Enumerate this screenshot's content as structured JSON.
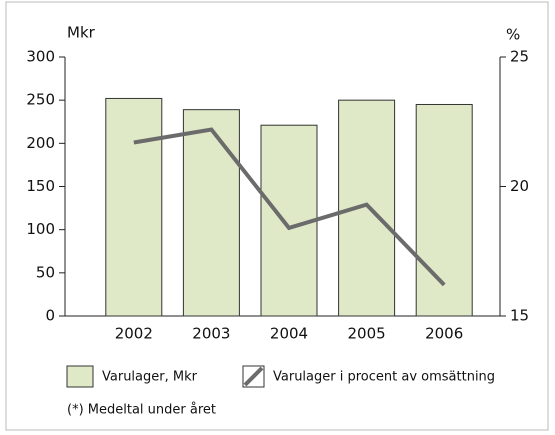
{
  "chart_data": {
    "type": "combo",
    "ylabel": "Mkr",
    "y2label": "%",
    "categories": [
      "2002",
      "2003",
      "2004",
      "2005",
      "2006"
    ],
    "series": [
      {
        "name": "Varulager, Mkr",
        "type": "bar",
        "color": "#dfe9c8",
        "values": [
          252,
          239,
          221,
          250,
          245
        ]
      },
      {
        "name": "Varulager i procent av omsättning",
        "type": "line",
        "axis": "y2",
        "color": "#6b6b6b",
        "values": [
          21.7,
          22.2,
          18.4,
          19.3,
          16.2
        ]
      }
    ],
    "ylim": [
      0,
      300
    ],
    "yticks": [
      0,
      50,
      100,
      150,
      200,
      250,
      300
    ],
    "y2lim": [
      15,
      25
    ],
    "y2ticks": [
      15,
      20,
      25
    ],
    "note": "(*) Medeltal under året"
  }
}
